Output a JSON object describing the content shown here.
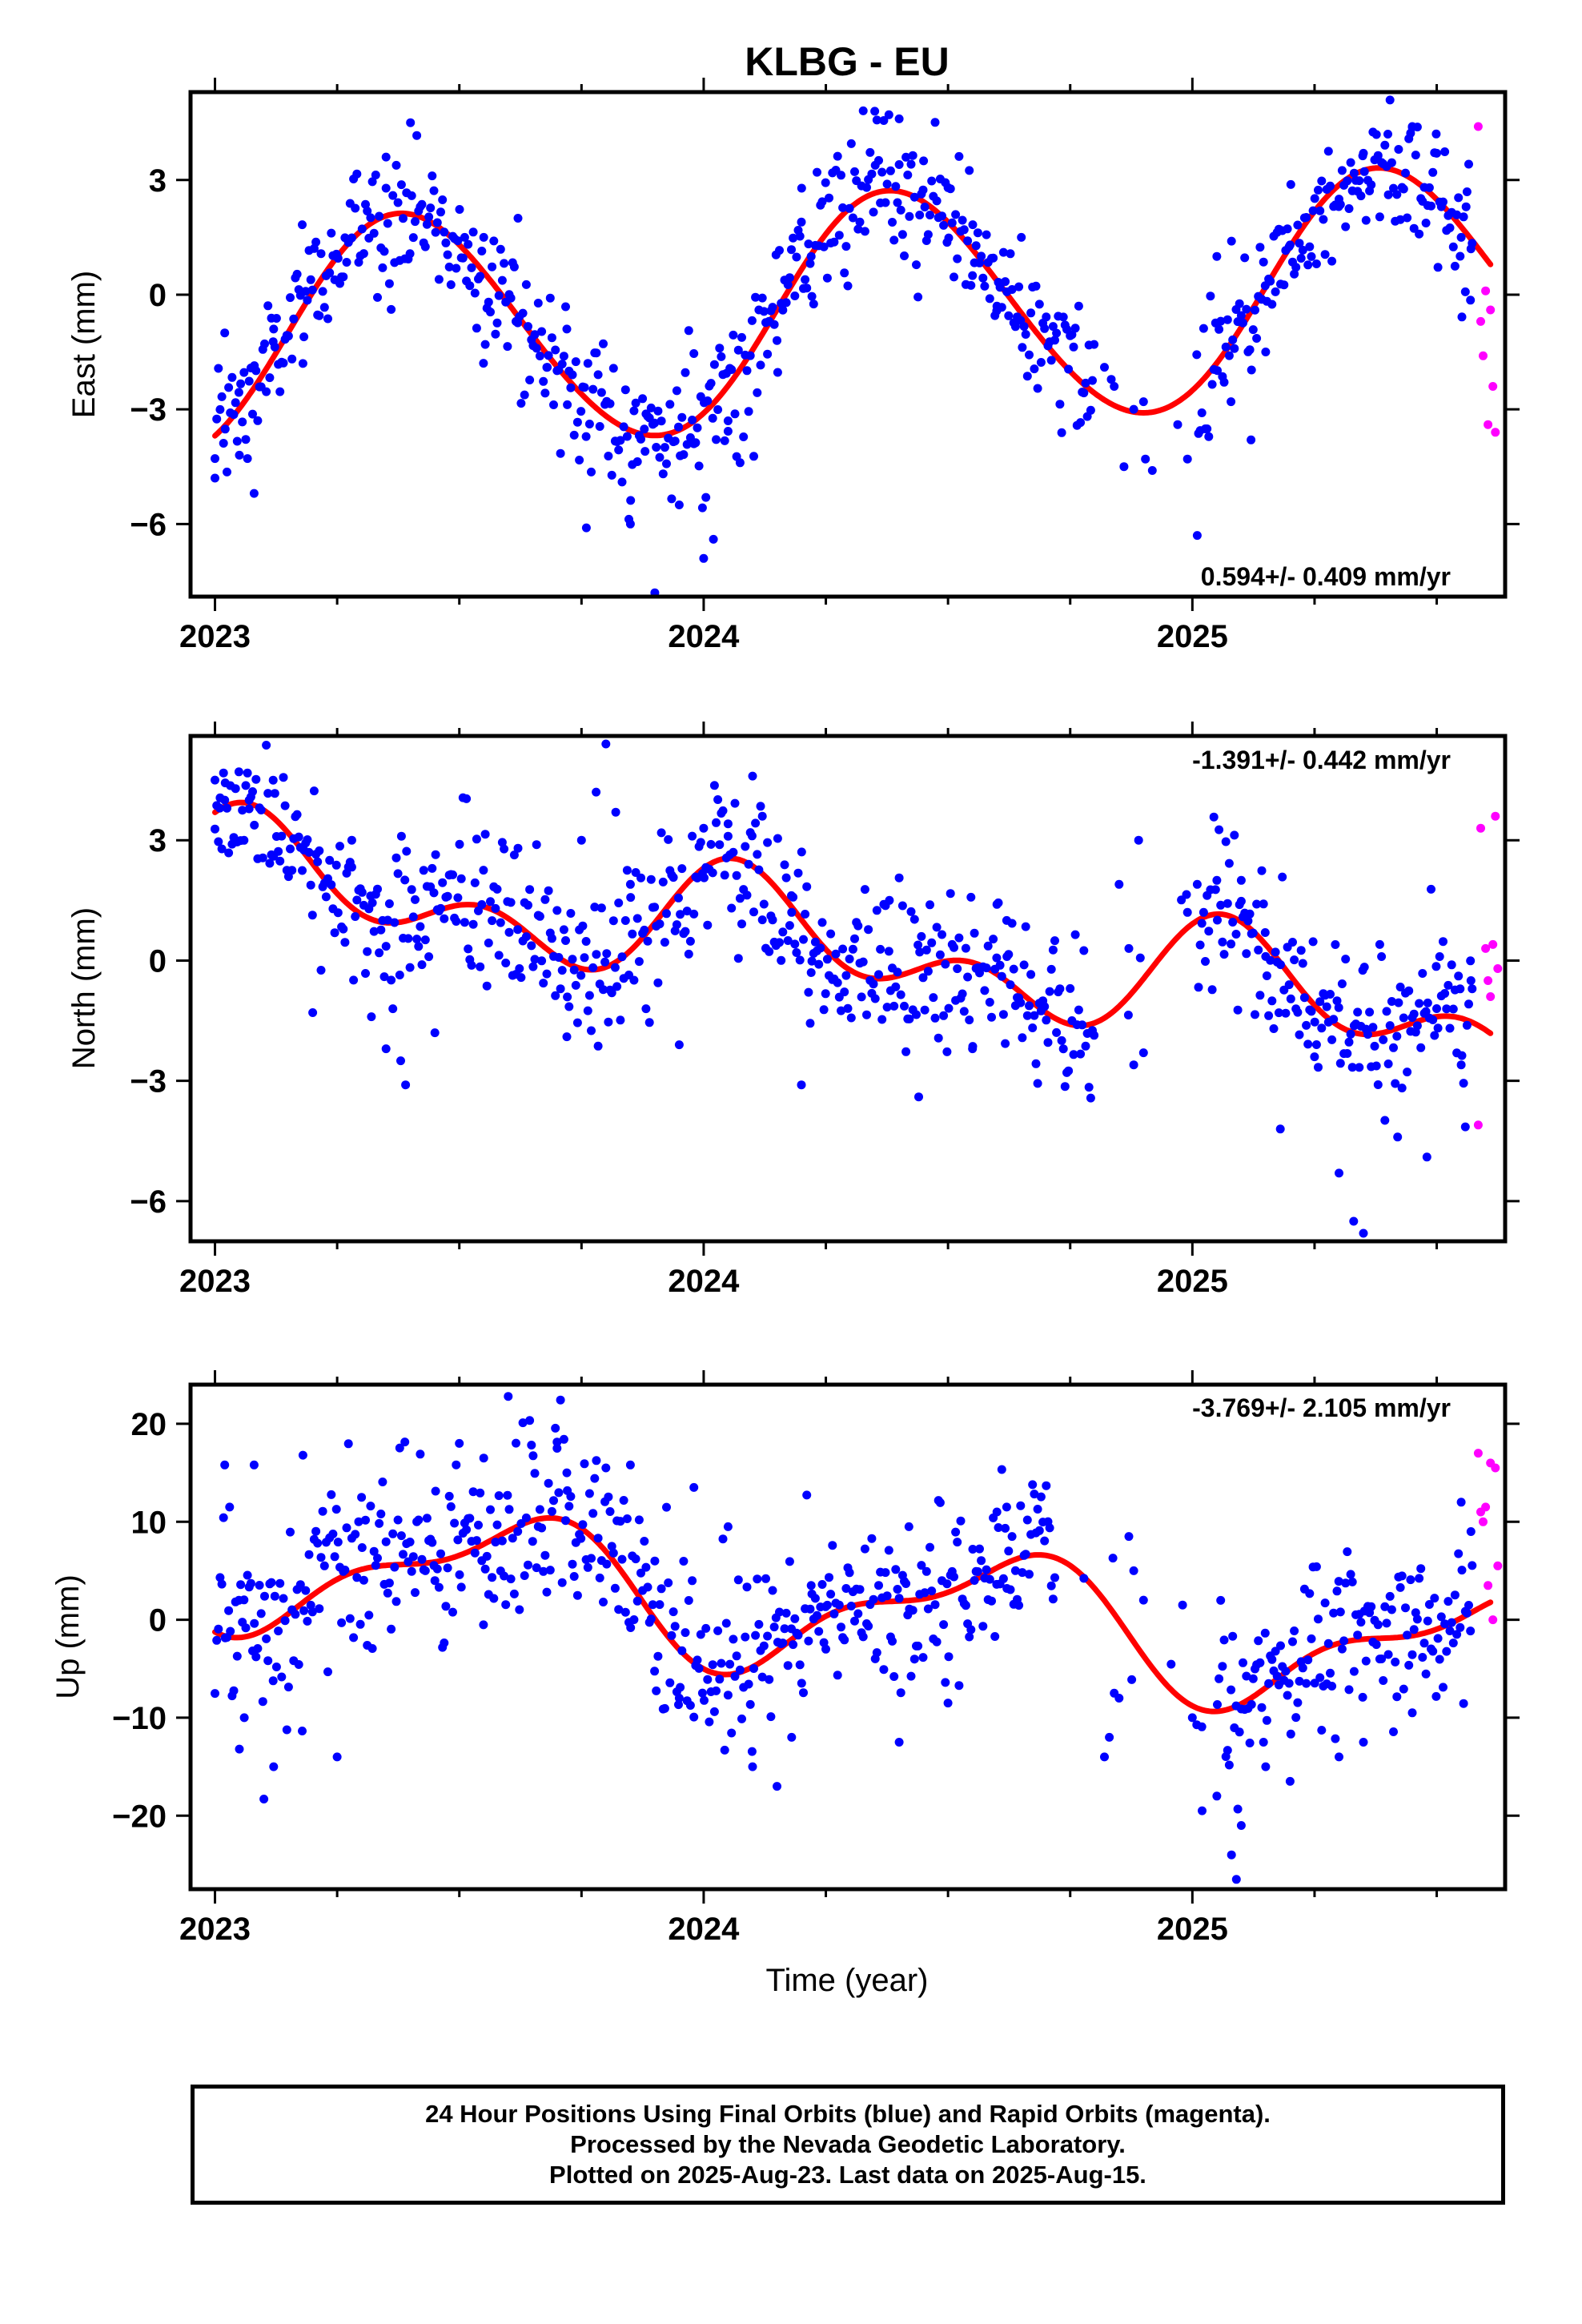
{
  "figure": {
    "title": "KLBG - EU",
    "xlabel": "Time (year)",
    "caption": [
      "24 Hour Positions Using Final Orbits (blue) and Rapid Orbits (magenta).",
      "Processed by the Nevada Geodetic Laboratory.",
      "Plotted on 2025-Aug-23. Last data on 2025-Aug-15."
    ],
    "colors": {
      "final": "#0000ff",
      "rapid": "#ff00ff",
      "fit": "#ff0000"
    }
  },
  "chart_data": [
    {
      "type": "scatter",
      "panel": "east",
      "ylabel": "East (mm)",
      "rate_label": "0.594+/- 0.409 mm/yr",
      "xlim": [
        2022.95,
        2025.64
      ],
      "ylim": [
        -7.9,
        5.3
      ],
      "xticks": [
        2023,
        2024,
        2025
      ],
      "xtick_labels": [
        "2023",
        "2024",
        "2025"
      ],
      "yticks": [
        -6,
        -3,
        0,
        3
      ],
      "ytick_labels": [
        "−6",
        "−3",
        "0",
        "3"
      ],
      "fit": {
        "mean": -0.45,
        "rate": 0.594,
        "ann_amp": 3.05,
        "ann_peak": 0.39,
        "semi_amp": 0.15,
        "semi_phase": 0.3,
        "gap": [
          2024.8,
          2025.01
        ]
      },
      "series": [
        {
          "name": "Final Orbits",
          "color": "#0000ff",
          "points": [
            [
              2023.0,
              -4.8
            ],
            [
              2023.02,
              -1.0
            ],
            [
              2023.05,
              -4.2
            ],
            [
              2023.08,
              -5.2
            ],
            [
              2023.12,
              -0.9
            ],
            [
              2023.18,
              -1.8
            ],
            [
              2023.35,
              3.6
            ],
            [
              2023.4,
              4.5
            ],
            [
              2023.55,
              1.5
            ],
            [
              2023.62,
              2.0
            ],
            [
              2023.68,
              -1.9
            ],
            [
              2023.72,
              -0.9
            ],
            [
              2023.76,
              -6.1
            ],
            [
              2023.85,
              -6.0
            ],
            [
              2023.88,
              -4.1
            ],
            [
              2023.9,
              -7.8
            ],
            [
              2023.95,
              -5.5
            ],
            [
              2023.98,
              -3.9
            ],
            [
              2024.0,
              -6.9
            ],
            [
              2024.02,
              -6.4
            ],
            [
              2024.05,
              -3.3
            ],
            [
              2024.15,
              -1.2
            ],
            [
              2024.2,
              1.9
            ],
            [
              2024.22,
              1.0
            ],
            [
              2024.35,
              4.8
            ],
            [
              2024.4,
              4.6
            ],
            [
              2024.45,
              3.5
            ],
            [
              2024.5,
              2.8
            ],
            [
              2024.55,
              0.5
            ],
            [
              2024.6,
              -0.3
            ],
            [
              2024.65,
              1.5
            ],
            [
              2024.82,
              -1.9
            ],
            [
              2024.84,
              -2.4
            ],
            [
              2024.86,
              -4.5
            ],
            [
              2024.88,
              -3.0
            ],
            [
              2024.9,
              -2.8
            ],
            [
              2024.97,
              -3.4
            ],
            [
              2024.99,
              -4.3
            ],
            [
              2025.01,
              -6.3
            ],
            [
              2025.05,
              1.0
            ],
            [
              2025.08,
              1.4
            ],
            [
              2025.12,
              -3.8
            ],
            [
              2025.15,
              -1.5
            ],
            [
              2025.2,
              1.3
            ],
            [
              2025.3,
              2.5
            ],
            [
              2025.35,
              3.7
            ],
            [
              2025.4,
              4.2
            ],
            [
              2025.45,
              4.4
            ],
            [
              2025.5,
              3.7
            ],
            [
              2025.55,
              1.5
            ],
            [
              2025.56,
              2.3
            ],
            [
              2025.57,
              1.2
            ]
          ]
        },
        {
          "name": "Rapid Orbits",
          "color": "#ff00ff",
          "points": [
            [
              2025.585,
              4.4
            ],
            [
              2025.59,
              -0.7
            ],
            [
              2025.595,
              -1.6
            ],
            [
              2025.6,
              0.1
            ],
            [
              2025.605,
              -3.4
            ],
            [
              2025.61,
              -0.4
            ],
            [
              2025.615,
              -2.4
            ],
            [
              2025.62,
              -3.6
            ]
          ]
        }
      ]
    },
    {
      "type": "scatter",
      "panel": "north",
      "ylabel": "North (mm)",
      "rate_label": "-1.391+/- 0.442 mm/yr",
      "xlim": [
        2022.95,
        2025.64
      ],
      "ylim": [
        -7.0,
        5.6
      ],
      "xticks": [
        2023,
        2024,
        2025
      ],
      "xtick_labels": [
        "2023",
        "2024",
        "2025"
      ],
      "yticks": [
        -6,
        -3,
        0,
        3
      ],
      "ytick_labels": [
        "−6",
        "−3",
        "0",
        "3"
      ],
      "fit": {
        "mean": 0.35,
        "rate": -1.391,
        "ann_amp": 1.0,
        "ann_peak": 0.1,
        "semi_amp": 0.9,
        "semi_phase": 0.05,
        "gap": [
          2024.8,
          2025.01
        ]
      },
      "series": [
        {
          "name": "Final Orbits",
          "color": "#0000ff",
          "points": [
            [
              2023.0,
              4.5
            ],
            [
              2023.01,
              3.8
            ],
            [
              2023.02,
              4.0
            ],
            [
              2023.07,
              4.0
            ],
            [
              2023.12,
              2.6
            ],
            [
              2023.2,
              -1.3
            ],
            [
              2023.28,
              3.0
            ],
            [
              2023.32,
              -1.4
            ],
            [
              2023.35,
              -2.2
            ],
            [
              2023.38,
              -2.5
            ],
            [
              2023.39,
              -3.1
            ],
            [
              2023.45,
              -1.8
            ],
            [
              2023.62,
              2.8
            ],
            [
              2023.72,
              -1.9
            ],
            [
              2023.75,
              3.0
            ],
            [
              2023.78,
              4.2
            ],
            [
              2023.8,
              5.4
            ],
            [
              2023.82,
              3.7
            ],
            [
              2023.85,
              1.9
            ],
            [
              2023.95,
              -2.1
            ],
            [
              2024.0,
              3.3
            ],
            [
              2024.05,
              3.1
            ],
            [
              2024.1,
              4.6
            ],
            [
              2024.12,
              3.6
            ],
            [
              2024.18,
              1.2
            ],
            [
              2024.2,
              -3.1
            ],
            [
              2024.22,
              -0.3
            ],
            [
              2024.38,
              1.5
            ],
            [
              2024.44,
              -3.4
            ],
            [
              2024.55,
              -2.2
            ],
            [
              2024.6,
              1.4
            ],
            [
              2024.62,
              1.0
            ],
            [
              2024.85,
              1.9
            ],
            [
              2024.87,
              0.3
            ],
            [
              2024.88,
              -2.6
            ],
            [
              2024.89,
              3.0
            ],
            [
              2024.9,
              -2.3
            ],
            [
              2024.99,
              1.2
            ],
            [
              2025.01,
              1.9
            ],
            [
              2025.05,
              2.0
            ],
            [
              2025.1,
              2.0
            ],
            [
              2025.15,
              0.1
            ],
            [
              2025.18,
              -4.2
            ],
            [
              2025.25,
              -2.4
            ],
            [
              2025.3,
              -5.3
            ],
            [
              2025.33,
              -6.5
            ],
            [
              2025.35,
              -6.8
            ],
            [
              2025.42,
              -4.4
            ],
            [
              2025.48,
              -4.9
            ],
            [
              2025.5,
              -1.2
            ],
            [
              2025.55,
              -2.6
            ],
            [
              2025.57,
              -0.5
            ]
          ]
        },
        {
          "name": "Rapid Orbits",
          "color": "#ff00ff",
          "points": [
            [
              2025.585,
              -4.1
            ],
            [
              2025.59,
              3.3
            ],
            [
              2025.6,
              0.3
            ],
            [
              2025.605,
              -0.5
            ],
            [
              2025.61,
              -0.9
            ],
            [
              2025.615,
              0.4
            ],
            [
              2025.62,
              3.6
            ],
            [
              2025.625,
              -0.2
            ]
          ]
        }
      ]
    },
    {
      "type": "scatter",
      "panel": "up",
      "ylabel": "Up (mm)",
      "rate_label": "-3.769+/- 2.105 mm/yr",
      "xlim": [
        2022.95,
        2025.64
      ],
      "ylim": [
        -27.5,
        24.0
      ],
      "xticks": [
        2023,
        2024,
        2025
      ],
      "xtick_labels": [
        "2023",
        "2024",
        "2025"
      ],
      "yticks": [
        -20,
        -10,
        0,
        10,
        20
      ],
      "ytick_labels": [
        "−20",
        "−10",
        "0",
        "10",
        "20"
      ],
      "fit": {
        "mean": 1.2,
        "rate": -3.769,
        "ann_amp": 6.0,
        "ann_peak": 0.6,
        "semi_amp": 2.5,
        "semi_phase": 0.25,
        "gap": [
          2024.72,
          2025.05
        ]
      },
      "series": [
        {
          "name": "Final Orbits",
          "color": "#0000ff",
          "points": [
            [
              2023.02,
              15.8
            ],
            [
              2023.03,
              11.5
            ],
            [
              2023.05,
              -13.2
            ],
            [
              2023.06,
              -10.0
            ],
            [
              2023.08,
              15.8
            ],
            [
              2023.1,
              -18.3
            ],
            [
              2023.12,
              -15.0
            ],
            [
              2023.18,
              16.8
            ],
            [
              2023.25,
              -14.0
            ],
            [
              2023.3,
              12.5
            ],
            [
              2023.45,
              4.0
            ],
            [
              2023.5,
              18.0
            ],
            [
              2023.55,
              16.5
            ],
            [
              2023.6,
              22.8
            ],
            [
              2023.65,
              8.0
            ],
            [
              2023.7,
              17.5
            ],
            [
              2023.72,
              15.0
            ],
            [
              2023.8,
              15.5
            ],
            [
              2023.85,
              15.8
            ],
            [
              2023.9,
              6.0
            ],
            [
              2023.95,
              -8.0
            ],
            [
              2023.98,
              13.5
            ],
            [
              2024.05,
              9.5
            ],
            [
              2024.1,
              -15.0
            ],
            [
              2024.15,
              -17.0
            ],
            [
              2024.18,
              -12.0
            ],
            [
              2024.22,
              3.5
            ],
            [
              2024.25,
              -3.0
            ],
            [
              2024.4,
              -12.5
            ],
            [
              2024.42,
              9.5
            ],
            [
              2024.5,
              -8.5
            ],
            [
              2024.6,
              11.0
            ],
            [
              2024.62,
              11.5
            ],
            [
              2024.82,
              -14.0
            ],
            [
              2024.83,
              -12.0
            ],
            [
              2024.84,
              -7.5
            ],
            [
              2024.85,
              -8.0
            ],
            [
              2024.87,
              8.5
            ],
            [
              2024.88,
              5.0
            ],
            [
              2024.9,
              2.0
            ],
            [
              2024.98,
              1.5
            ],
            [
              2025.0,
              -10.0
            ],
            [
              2025.02,
              -19.5
            ],
            [
              2025.05,
              -18.0
            ],
            [
              2025.08,
              -24.0
            ],
            [
              2025.09,
              -26.5
            ],
            [
              2025.1,
              -21.0
            ],
            [
              2025.15,
              -15.0
            ],
            [
              2025.2,
              -16.5
            ],
            [
              2025.3,
              -14.0
            ],
            [
              2025.35,
              -12.5
            ],
            [
              2025.45,
              -9.5
            ],
            [
              2025.55,
              12.0
            ],
            [
              2025.57,
              9.0
            ]
          ]
        },
        {
          "name": "Rapid Orbits",
          "color": "#ff00ff",
          "points": [
            [
              2025.585,
              17.0
            ],
            [
              2025.59,
              11.0
            ],
            [
              2025.595,
              10.0
            ],
            [
              2025.6,
              11.5
            ],
            [
              2025.605,
              3.5
            ],
            [
              2025.61,
              16.0
            ],
            [
              2025.615,
              0.0
            ],
            [
              2025.62,
              15.5
            ],
            [
              2025.625,
              5.5
            ]
          ]
        }
      ]
    }
  ]
}
